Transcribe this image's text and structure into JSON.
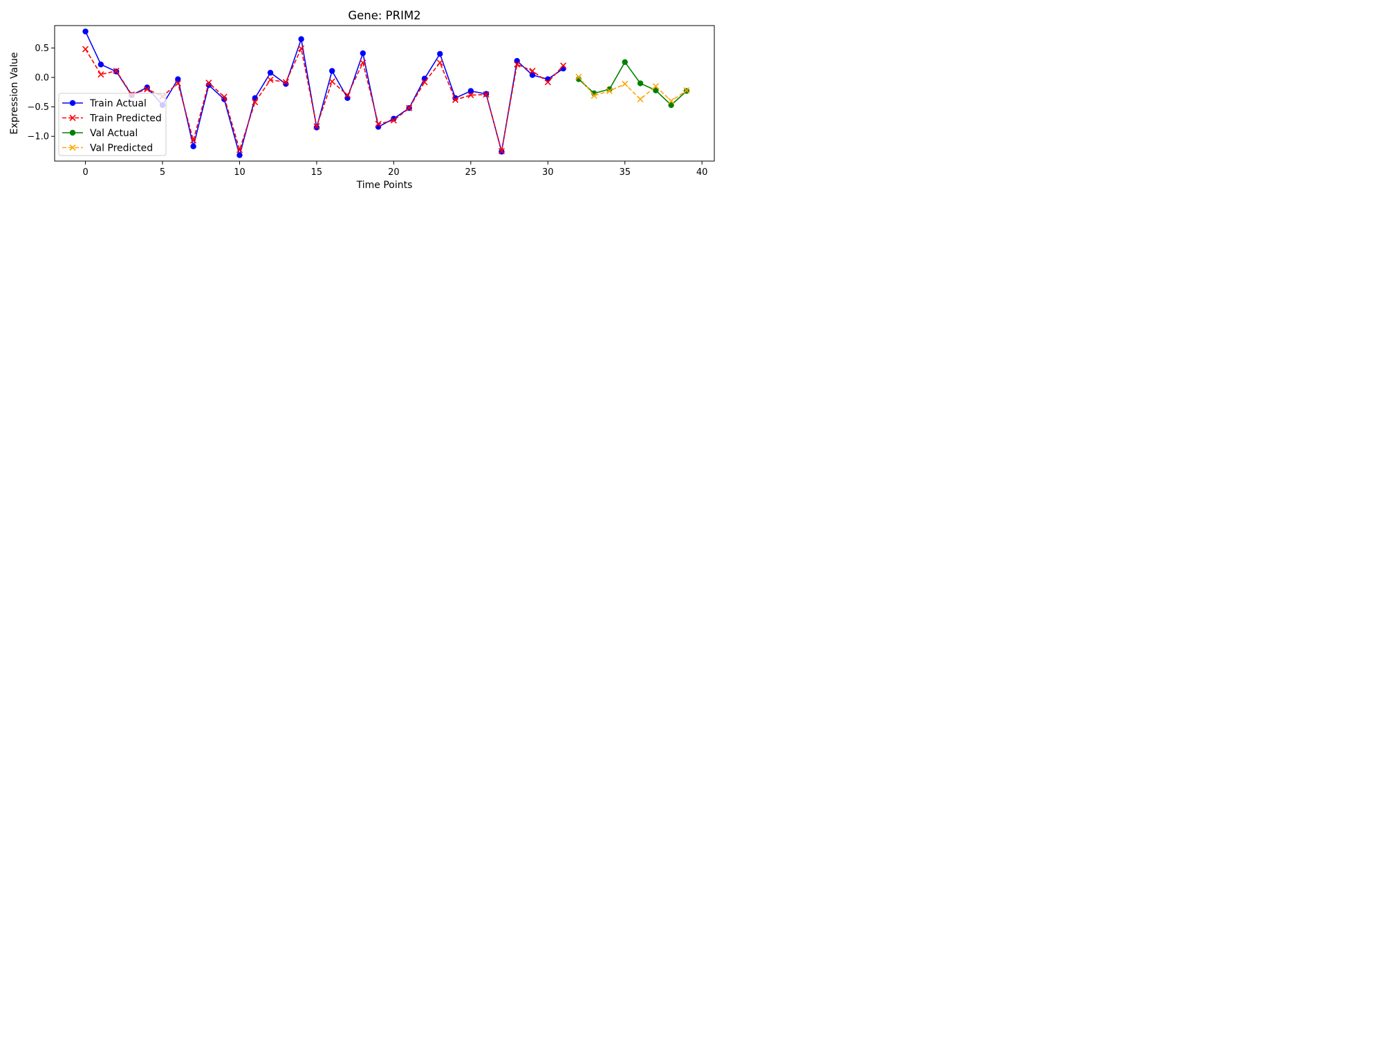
{
  "chart_data": {
    "type": "line",
    "title": "Gene: PRIM2",
    "xlabel": "Time Points",
    "ylabel": "Expression Value",
    "xlim": [
      -2,
      40.8
    ],
    "ylim": [
      -1.42,
      0.88
    ],
    "xticks": [
      0,
      5,
      10,
      15,
      20,
      25,
      30,
      35,
      40
    ],
    "xtick_labels": [
      "0",
      "5",
      "10",
      "15",
      "20",
      "25",
      "30",
      "35",
      "40"
    ],
    "yticks": [
      -1.0,
      -0.5,
      0.0,
      0.5
    ],
    "ytick_labels": [
      "−1.0",
      "−0.5",
      "0.0",
      "0.5"
    ],
    "grid": false,
    "legend_position": "left",
    "series": [
      {
        "name": "Train Actual",
        "color": "#0000ff",
        "linestyle": "solid",
        "marker": "circle",
        "x": [
          0,
          1,
          2,
          3,
          4,
          5,
          6,
          7,
          8,
          9,
          10,
          11,
          12,
          13,
          14,
          15,
          16,
          17,
          18,
          19,
          20,
          21,
          22,
          23,
          24,
          25,
          26,
          27,
          28,
          29,
          30,
          31
        ],
        "y": [
          0.78,
          0.22,
          0.1,
          -0.3,
          -0.17,
          -0.47,
          -0.03,
          -1.17,
          -0.13,
          -0.37,
          -1.32,
          -0.35,
          0.08,
          -0.11,
          0.65,
          -0.85,
          0.11,
          -0.35,
          0.41,
          -0.84,
          -0.7,
          -0.52,
          -0.02,
          0.4,
          -0.35,
          -0.23,
          -0.28,
          -1.26,
          0.28,
          0.04,
          -0.03,
          0.15
        ]
      },
      {
        "name": "Train Predicted",
        "color": "#ff0000",
        "linestyle": "dashed",
        "marker": "x",
        "x": [
          0,
          1,
          2,
          3,
          4,
          5,
          6,
          7,
          8,
          9,
          10,
          11,
          12,
          13,
          14,
          15,
          16,
          17,
          18,
          19,
          20,
          21,
          22,
          23,
          24,
          25,
          26,
          27,
          28,
          29,
          30,
          31
        ],
        "y": [
          0.48,
          0.05,
          0.11,
          -0.29,
          -0.2,
          -0.32,
          -0.1,
          -1.07,
          -0.09,
          -0.33,
          -1.23,
          -0.42,
          -0.04,
          -0.08,
          0.49,
          -0.83,
          -0.07,
          -0.3,
          0.25,
          -0.79,
          -0.73,
          -0.52,
          -0.08,
          0.25,
          -0.38,
          -0.3,
          -0.29,
          -1.25,
          0.22,
          0.11,
          -0.08,
          0.2
        ]
      },
      {
        "name": "Val Actual",
        "color": "#008000",
        "linestyle": "solid",
        "marker": "circle",
        "x": [
          32,
          33,
          34,
          35,
          36,
          37,
          38,
          39
        ],
        "y": [
          -0.03,
          -0.27,
          -0.2,
          0.26,
          -0.1,
          -0.22,
          -0.47,
          -0.23
        ]
      },
      {
        "name": "Val Predicted",
        "color": "#ffa500",
        "linestyle": "dashed",
        "marker": "x",
        "x": [
          32,
          33,
          34,
          35,
          36,
          37,
          38,
          39
        ],
        "y": [
          0.01,
          -0.31,
          -0.23,
          -0.11,
          -0.37,
          -0.15,
          -0.4,
          -0.22
        ]
      }
    ]
  }
}
